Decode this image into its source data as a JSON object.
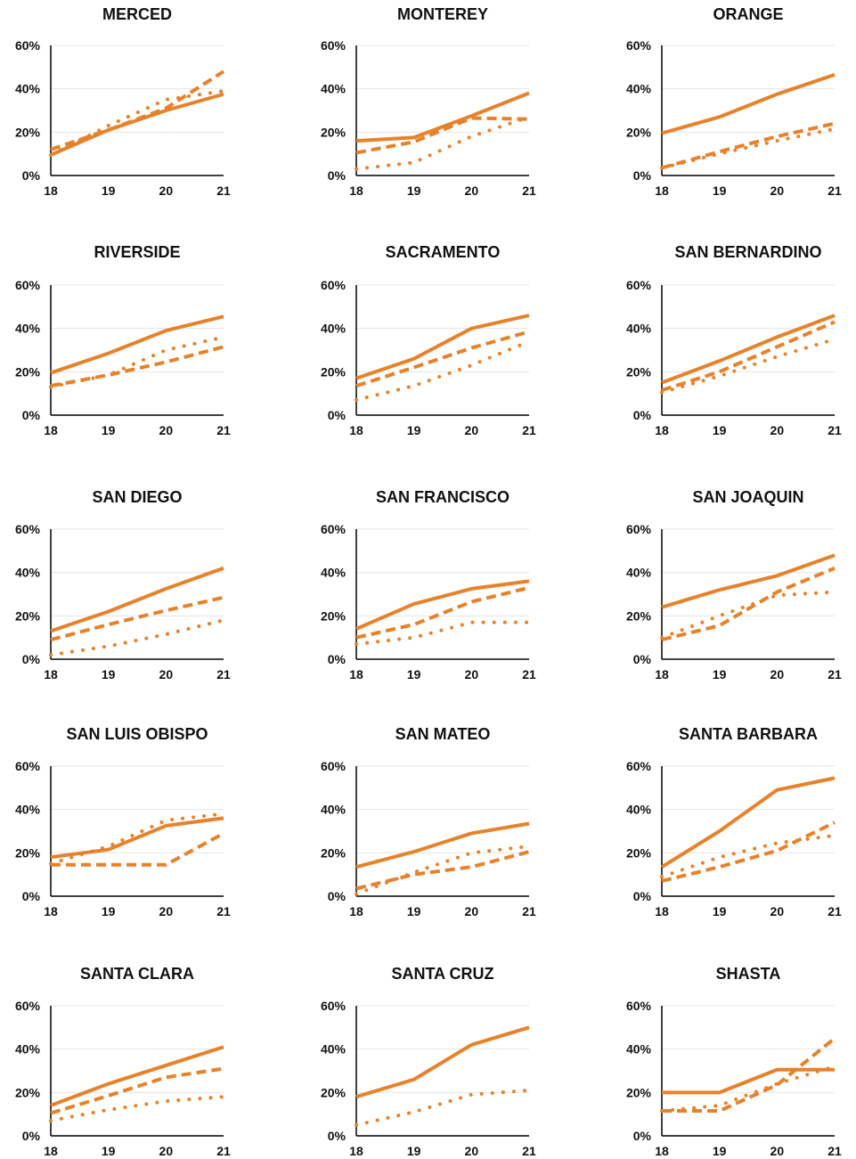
{
  "chart_data": [
    {
      "type": "line",
      "title": "MERCED",
      "x": [
        "18",
        "19",
        "20",
        "21"
      ],
      "yticks": [
        "0%",
        "20%",
        "40%",
        "60%"
      ],
      "ylim": [
        0,
        60
      ],
      "series": [
        {
          "style": "solid",
          "values": [
            9.5,
            21,
            30,
            37.5
          ]
        },
        {
          "style": "dashed",
          "values": [
            12,
            21,
            31,
            48
          ]
        },
        {
          "style": "dotted",
          "values": [
            9.5,
            23,
            35,
            39
          ]
        }
      ]
    },
    {
      "type": "line",
      "title": "MONTEREY",
      "x": [
        "18",
        "19",
        "20",
        "21"
      ],
      "yticks": [
        "0%",
        "20%",
        "40%",
        "60%"
      ],
      "ylim": [
        0,
        60
      ],
      "series": [
        {
          "style": "solid",
          "values": [
            16,
            17.5,
            27.5,
            38
          ]
        },
        {
          "style": "dashed",
          "values": [
            10.5,
            15.5,
            26.5,
            26
          ]
        },
        {
          "style": "dotted",
          "values": [
            3,
            6,
            18,
            27
          ]
        }
      ]
    },
    {
      "type": "line",
      "title": "ORANGE",
      "x": [
        "18",
        "19",
        "20",
        "21"
      ],
      "yticks": [
        "0%",
        "20%",
        "40%",
        "60%"
      ],
      "ylim": [
        0,
        60
      ],
      "series": [
        {
          "style": "solid",
          "values": [
            19.5,
            27,
            37.5,
            46.5
          ]
        },
        {
          "style": "dashed",
          "values": [
            3.5,
            11,
            18,
            24
          ]
        },
        {
          "style": "dotted",
          "values": [
            3.5,
            10,
            16,
            21.5
          ]
        }
      ]
    },
    {
      "type": "line",
      "title": "RIVERSIDE",
      "x": [
        "18",
        "19",
        "20",
        "21"
      ],
      "yticks": [
        "0%",
        "20%",
        "40%",
        "60%"
      ],
      "ylim": [
        0,
        60
      ],
      "series": [
        {
          "style": "solid",
          "values": [
            19.5,
            28.5,
            39,
            45.5
          ]
        },
        {
          "style": "dashed",
          "values": [
            13.5,
            18.5,
            24.5,
            31.5
          ]
        },
        {
          "style": "dotted",
          "values": [
            13,
            18.5,
            30,
            36
          ]
        }
      ]
    },
    {
      "type": "line",
      "title": "SACRAMENTO",
      "x": [
        "18",
        "19",
        "20",
        "21"
      ],
      "yticks": [
        "0%",
        "20%",
        "40%",
        "60%"
      ],
      "ylim": [
        0,
        60
      ],
      "series": [
        {
          "style": "solid",
          "values": [
            17,
            26,
            40,
            46
          ]
        },
        {
          "style": "dashed",
          "values": [
            13.5,
            22,
            31,
            38.5
          ]
        },
        {
          "style": "dotted",
          "values": [
            7,
            13.5,
            23,
            34
          ]
        }
      ]
    },
    {
      "type": "line",
      "title": "SAN BERNARDINO",
      "x": [
        "18",
        "19",
        "20",
        "21"
      ],
      "yticks": [
        "0%",
        "20%",
        "40%",
        "60%"
      ],
      "ylim": [
        0,
        60
      ],
      "series": [
        {
          "style": "solid",
          "values": [
            15,
            25,
            36,
            46
          ]
        },
        {
          "style": "dashed",
          "values": [
            11.5,
            20,
            31.5,
            43
          ]
        },
        {
          "style": "dotted",
          "values": [
            10.5,
            18,
            27,
            35
          ]
        }
      ]
    },
    {
      "type": "line",
      "title": "SAN DIEGO",
      "x": [
        "18",
        "19",
        "20",
        "21"
      ],
      "yticks": [
        "0%",
        "20%",
        "40%",
        "60%"
      ],
      "ylim": [
        0,
        60
      ],
      "series": [
        {
          "style": "solid",
          "values": [
            13,
            22,
            32.5,
            42
          ]
        },
        {
          "style": "dashed",
          "values": [
            9,
            16,
            22.5,
            28.5
          ]
        },
        {
          "style": "dotted",
          "values": [
            2,
            6,
            11.5,
            18
          ]
        }
      ]
    },
    {
      "type": "line",
      "title": "SAN FRANCISCO",
      "x": [
        "18",
        "19",
        "20",
        "21"
      ],
      "yticks": [
        "0%",
        "20%",
        "40%",
        "60%"
      ],
      "ylim": [
        0,
        60
      ],
      "series": [
        {
          "style": "solid",
          "values": [
            14,
            25.5,
            32.5,
            36
          ]
        },
        {
          "style": "dashed",
          "values": [
            10,
            16,
            26.5,
            33
          ]
        },
        {
          "style": "dotted",
          "values": [
            7,
            10,
            17,
            17
          ]
        }
      ]
    },
    {
      "type": "line",
      "title": "SAN JOAQUIN",
      "x": [
        "18",
        "19",
        "20",
        "21"
      ],
      "yticks": [
        "0%",
        "20%",
        "40%",
        "60%"
      ],
      "ylim": [
        0,
        60
      ],
      "series": [
        {
          "style": "solid",
          "values": [
            24,
            32,
            38.5,
            48
          ]
        },
        {
          "style": "dashed",
          "values": [
            9,
            15.5,
            31,
            42
          ]
        },
        {
          "style": "dotted",
          "values": [
            10,
            20,
            29.5,
            31
          ]
        }
      ]
    },
    {
      "type": "line",
      "title": "SAN LUIS OBISPO",
      "x": [
        "18",
        "19",
        "20",
        "21"
      ],
      "yticks": [
        "0%",
        "20%",
        "40%",
        "60%"
      ],
      "ylim": [
        0,
        60
      ],
      "series": [
        {
          "style": "solid",
          "values": [
            18,
            21.5,
            32.5,
            36
          ]
        },
        {
          "style": "dashed",
          "values": [
            14.5,
            14.5,
            14.5,
            29
          ]
        },
        {
          "style": "dotted",
          "values": [
            15,
            23,
            35,
            38
          ]
        }
      ]
    },
    {
      "type": "line",
      "title": "SAN MATEO",
      "x": [
        "18",
        "19",
        "20",
        "21"
      ],
      "yticks": [
        "0%",
        "20%",
        "40%",
        "60%"
      ],
      "ylim": [
        0,
        60
      ],
      "series": [
        {
          "style": "solid",
          "values": [
            13.5,
            20.5,
            29,
            33.5
          ]
        },
        {
          "style": "dashed",
          "values": [
            3.5,
            10,
            13.5,
            20.5
          ]
        },
        {
          "style": "dotted",
          "values": [
            1,
            11,
            20,
            23
          ]
        }
      ]
    },
    {
      "type": "line",
      "title": "SANTA BARBARA",
      "x": [
        "18",
        "19",
        "20",
        "21"
      ],
      "yticks": [
        "0%",
        "20%",
        "40%",
        "60%"
      ],
      "ylim": [
        0,
        60
      ],
      "series": [
        {
          "style": "solid",
          "values": [
            13.5,
            30,
            49,
            54.5
          ]
        },
        {
          "style": "dashed",
          "values": [
            7,
            13.5,
            21,
            34
          ]
        },
        {
          "style": "dotted",
          "values": [
            9,
            18,
            24.5,
            28
          ]
        }
      ]
    },
    {
      "type": "line",
      "title": "SANTA CLARA",
      "x": [
        "18",
        "19",
        "20",
        "21"
      ],
      "yticks": [
        "0%",
        "20%",
        "40%",
        "60%"
      ],
      "ylim": [
        0,
        60
      ],
      "series": [
        {
          "style": "solid",
          "values": [
            14,
            24,
            32.5,
            41
          ]
        },
        {
          "style": "dashed",
          "values": [
            10.5,
            18.5,
            27,
            31
          ]
        },
        {
          "style": "dotted",
          "values": [
            7,
            12,
            16,
            18
          ]
        }
      ]
    },
    {
      "type": "line",
      "title": "SANTA CRUZ",
      "x": [
        "18",
        "19",
        "20",
        "21"
      ],
      "yticks": [
        "0%",
        "20%",
        "40%",
        "60%"
      ],
      "ylim": [
        0,
        60
      ],
      "series": [
        {
          "style": "solid",
          "values": [
            18,
            26,
            42,
            50
          ]
        },
        {
          "style": "dotted",
          "values": [
            5,
            11,
            19,
            21
          ]
        }
      ]
    },
    {
      "type": "line",
      "title": "SHASTA",
      "x": [
        "18",
        "19",
        "20",
        "21"
      ],
      "yticks": [
        "0%",
        "20%",
        "40%",
        "60%"
      ],
      "ylim": [
        0,
        60
      ],
      "series": [
        {
          "style": "solid",
          "values": [
            20,
            20,
            30.5,
            30.5
          ]
        },
        {
          "style": "dashed",
          "values": [
            11.5,
            11.5,
            23.5,
            45
          ]
        },
        {
          "style": "dotted",
          "values": [
            11.5,
            14,
            24,
            32
          ]
        }
      ]
    }
  ],
  "colors": {
    "line": "#E8822A",
    "axis": "#000000",
    "grid": "#e4e4e4",
    "text": "#111111"
  }
}
